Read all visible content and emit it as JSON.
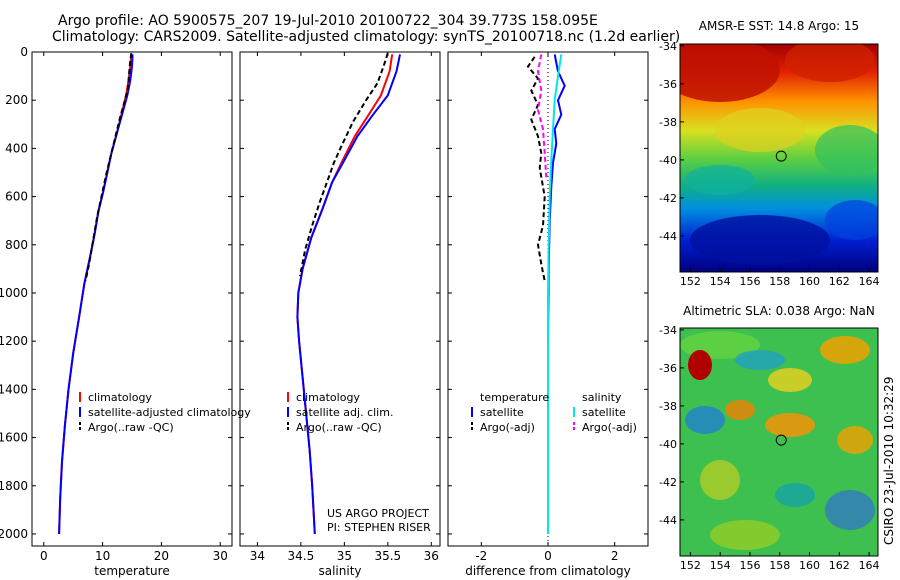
{
  "header": {
    "line1": "Argo profile: AO 5900575_207 19-Jul-2010 20100722_304 39.773S 158.095E",
    "line2": "Climatology: CARS2009. Satellite-adjusted climatology: synTS_20100718.nc (1.2d earlier)"
  },
  "side_label": "CSIRO 23-Jul-2010 10:32:29",
  "project_note": {
    "line1": "US ARGO PROJECT",
    "line2": "PI: STEPHEN RISER"
  },
  "colors": {
    "climatology": "#ff0000",
    "satellite": "#0000ff",
    "argo": "#000000",
    "salinity_satellite": "#00e5ee",
    "salinity_argo": "#ff00ff"
  },
  "chart_data": [
    {
      "type": "line",
      "id": "temperature",
      "xlabel": "temperature",
      "xlim": [
        -2,
        32
      ],
      "ylim": [
        2050,
        0
      ],
      "xticks": [
        0,
        10,
        20,
        30
      ],
      "yticks": [
        0,
        200,
        400,
        600,
        800,
        1000,
        1200,
        1400,
        1600,
        1800,
        2000
      ],
      "legend": [
        "climatology",
        "satellite-adjusted climatology",
        "Argo(..raw -QC)"
      ],
      "series": [
        {
          "name": "climatology",
          "color": "#ff0000",
          "dash": "",
          "points": [
            [
              14.9,
              10
            ],
            [
              14.7,
              60
            ],
            [
              14.4,
              120
            ],
            [
              14.0,
              180
            ],
            [
              13.2,
              260
            ],
            [
              12.4,
              340
            ],
            [
              11.5,
              420
            ],
            [
              10.8,
              500
            ],
            [
              10.1,
              580
            ],
            [
              9.3,
              660
            ],
            [
              8.6,
              760
            ],
            [
              7.8,
              860
            ],
            [
              6.9,
              960
            ],
            [
              6.0,
              1100
            ],
            [
              5.0,
              1250
            ],
            [
              4.2,
              1400
            ],
            [
              3.6,
              1550
            ],
            [
              3.1,
              1700
            ],
            [
              2.8,
              1850
            ],
            [
              2.6,
              2000
            ]
          ]
        },
        {
          "name": "satellite-adjusted climatology",
          "color": "#0000ff",
          "dash": "",
          "points": [
            [
              15.1,
              10
            ],
            [
              15.0,
              60
            ],
            [
              14.7,
              120
            ],
            [
              14.2,
              180
            ],
            [
              13.3,
              260
            ],
            [
              12.4,
              340
            ],
            [
              11.5,
              420
            ],
            [
              10.8,
              500
            ],
            [
              10.1,
              580
            ],
            [
              9.3,
              660
            ],
            [
              8.6,
              760
            ],
            [
              7.8,
              860
            ],
            [
              6.9,
              960
            ],
            [
              6.0,
              1100
            ],
            [
              5.0,
              1250
            ],
            [
              4.2,
              1400
            ],
            [
              3.6,
              1550
            ],
            [
              3.1,
              1700
            ],
            [
              2.8,
              1850
            ],
            [
              2.6,
              2000
            ]
          ]
        },
        {
          "name": "Argo(..raw -QC)",
          "color": "#000000",
          "dash": "5,3",
          "points": [
            [
              14.9,
              5
            ],
            [
              14.7,
              40
            ],
            [
              14.5,
              90
            ],
            [
              14.3,
              150
            ],
            [
              13.8,
              200
            ],
            [
              13.0,
              270
            ],
            [
              12.2,
              350
            ],
            [
              11.4,
              430
            ],
            [
              10.6,
              510
            ],
            [
              9.9,
              590
            ],
            [
              9.1,
              680
            ],
            [
              8.4,
              780
            ],
            [
              7.7,
              880
            ],
            [
              7.1,
              950
            ]
          ]
        }
      ]
    },
    {
      "type": "line",
      "id": "salinity",
      "xlabel": "salinity",
      "xlim": [
        33.8,
        36.1
      ],
      "ylim": [
        2050,
        0
      ],
      "xticks": [
        34,
        34.5,
        35,
        35.5,
        36
      ],
      "legend": [
        "climatology",
        "satellite adj. clim.",
        "Argo(..raw -QC)"
      ],
      "series": [
        {
          "name": "climatology",
          "color": "#ff0000",
          "dash": "",
          "points": [
            [
              35.55,
              10
            ],
            [
              35.52,
              80
            ],
            [
              35.42,
              180
            ],
            [
              35.28,
              260
            ],
            [
              35.12,
              350
            ],
            [
              34.98,
              450
            ],
            [
              34.86,
              540
            ],
            [
              34.75,
              650
            ],
            [
              34.62,
              770
            ],
            [
              34.52,
              900
            ],
            [
              34.47,
              1000
            ],
            [
              34.46,
              1100
            ],
            [
              34.48,
              1200
            ],
            [
              34.52,
              1350
            ],
            [
              34.56,
              1500
            ],
            [
              34.6,
              1650
            ],
            [
              34.63,
              1800
            ],
            [
              34.66,
              2000
            ]
          ]
        },
        {
          "name": "satellite adj. clim.",
          "color": "#0000ff",
          "dash": "",
          "points": [
            [
              35.64,
              10
            ],
            [
              35.6,
              80
            ],
            [
              35.5,
              180
            ],
            [
              35.33,
              260
            ],
            [
              35.15,
              350
            ],
            [
              35.0,
              450
            ],
            [
              34.86,
              540
            ],
            [
              34.75,
              650
            ],
            [
              34.62,
              770
            ],
            [
              34.52,
              900
            ],
            [
              34.47,
              1000
            ],
            [
              34.46,
              1100
            ],
            [
              34.48,
              1200
            ],
            [
              34.52,
              1350
            ],
            [
              34.56,
              1500
            ],
            [
              34.6,
              1650
            ],
            [
              34.63,
              1800
            ],
            [
              34.66,
              2000
            ]
          ]
        },
        {
          "name": "Argo(..raw -QC)",
          "color": "#000000",
          "dash": "5,3",
          "points": [
            [
              35.5,
              5
            ],
            [
              35.45,
              60
            ],
            [
              35.38,
              130
            ],
            [
              35.25,
              200
            ],
            [
              35.1,
              290
            ],
            [
              34.98,
              380
            ],
            [
              34.88,
              460
            ],
            [
              34.8,
              540
            ],
            [
              34.72,
              620
            ],
            [
              34.63,
              720
            ],
            [
              34.55,
              820
            ],
            [
              34.49,
              930
            ]
          ]
        }
      ]
    },
    {
      "type": "line",
      "id": "difference",
      "xlabel": "difference from climatology",
      "xlim": [
        -3.0,
        3.0
      ],
      "ylim": [
        2050,
        0
      ],
      "xticks": [
        -2,
        0,
        2
      ],
      "legend_temperature_title": "temperature",
      "legend_salinity_title": "salinity",
      "legend": [
        "satellite",
        "Argo(-adj)",
        "satellite",
        "Argo(-adj)"
      ],
      "series": [
        {
          "name": "temperature satellite",
          "color": "#0000ff",
          "dash": "",
          "points": [
            [
              0.2,
              10
            ],
            [
              0.3,
              80
            ],
            [
              0.5,
              140
            ],
            [
              0.3,
              200
            ],
            [
              0.4,
              260
            ],
            [
              0.2,
              320
            ],
            [
              0.25,
              380
            ],
            [
              0.15,
              460
            ],
            [
              0.1,
              560
            ],
            [
              0.05,
              700
            ],
            [
              0.02,
              900
            ],
            [
              0.0,
              1200
            ],
            [
              0.0,
              1600
            ],
            [
              0.0,
              2000
            ]
          ]
        },
        {
          "name": "temperature Argo(-adj)",
          "color": "#000000",
          "dash": "5,3",
          "points": [
            [
              -0.4,
              20
            ],
            [
              -0.6,
              60
            ],
            [
              -0.3,
              110
            ],
            [
              -0.5,
              160
            ],
            [
              -0.3,
              220
            ],
            [
              -0.5,
              280
            ],
            [
              -0.3,
              350
            ],
            [
              -0.2,
              420
            ],
            [
              -0.25,
              480
            ],
            [
              -0.1,
              600
            ],
            [
              -0.15,
              720
            ],
            [
              -0.3,
              800
            ],
            [
              -0.2,
              880
            ],
            [
              -0.1,
              950
            ]
          ]
        },
        {
          "name": "salinity satellite",
          "color": "#00e5ee",
          "dash": "",
          "points": [
            [
              0.4,
              10
            ],
            [
              0.3,
              100
            ],
            [
              0.2,
              200
            ],
            [
              0.15,
              320
            ],
            [
              0.1,
              450
            ],
            [
              0.05,
              600
            ],
            [
              0.02,
              800
            ],
            [
              0.0,
              1000
            ],
            [
              0.0,
              1400
            ],
            [
              0.0,
              2000
            ]
          ]
        },
        {
          "name": "salinity Argo(-adj)",
          "color": "#ff00ff",
          "dash": "5,3",
          "points": [
            [
              -0.2,
              10
            ],
            [
              -0.3,
              80
            ],
            [
              -0.2,
              160
            ],
            [
              -0.3,
              240
            ],
            [
              -0.15,
              320
            ],
            [
              -0.1,
              420
            ],
            [
              -0.05,
              520
            ]
          ]
        }
      ]
    },
    {
      "type": "heatmap",
      "id": "sst-map",
      "title": "AMSR-E SST: 14.8 Argo: 15",
      "xticks": [
        152,
        154,
        156,
        158,
        160,
        162,
        164
      ],
      "yticks": [
        -34,
        -36,
        -38,
        -40,
        -42,
        -44
      ],
      "xlim": [
        151.3,
        164.6
      ],
      "ylim": [
        -45.9,
        -33.9
      ],
      "marker": [
        158.1,
        -39.8
      ]
    },
    {
      "type": "heatmap",
      "id": "sla-map",
      "title": "Altimetric SLA: 0.038 Argo: NaN",
      "xticks": [
        152,
        154,
        156,
        158,
        160,
        162,
        164
      ],
      "yticks": [
        -34,
        -36,
        -38,
        -40,
        -42,
        -44
      ],
      "xlim": [
        151.3,
        164.6
      ],
      "ylim": [
        -45.9,
        -33.9
      ],
      "marker": [
        158.1,
        -39.8
      ]
    }
  ]
}
